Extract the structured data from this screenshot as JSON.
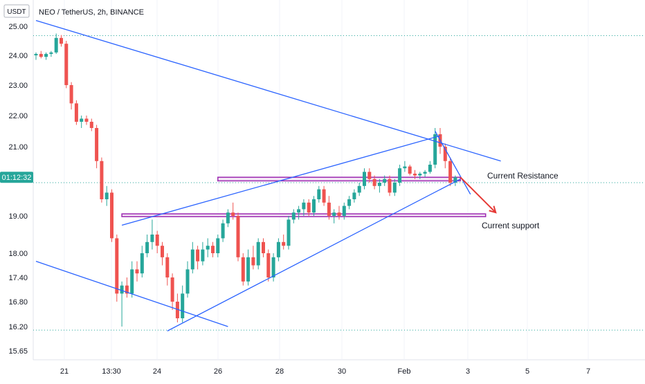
{
  "chart_data": {
    "type": "candlestick",
    "title": "NEO / TetherUS, 2h, BINANCE",
    "currency_badge": "USDT",
    "current_price_label": "01:12:32",
    "y_ticks": [
      "25.00",
      "24.00",
      "23.00",
      "22.00",
      "21.00",
      "19.00",
      "18.00",
      "17.40",
      "16.80",
      "16.20",
      "15.65"
    ],
    "x_ticks": [
      "21",
      "13:30",
      "24",
      "26",
      "28",
      "30",
      "Feb",
      "3",
      "5",
      "7"
    ],
    "annotations": {
      "resistance": "Current Resistance",
      "support": "Current support"
    },
    "colors": {
      "up": "#26a69a",
      "down": "#ef5350",
      "trendline": "#2962ff",
      "zone": "#9c27b0",
      "arrow": "#e53935",
      "dotted_level": "#26a69a",
      "current_badge": "#26a69a"
    },
    "series": [
      {
        "name": "NEO/USDT",
        "ohlc": [
          [
            24.0,
            24.1,
            23.85,
            24.05
          ],
          [
            24.05,
            24.15,
            23.9,
            23.95
          ],
          [
            23.95,
            24.1,
            23.85,
            24.05
          ],
          [
            24.05,
            24.15,
            23.95,
            24.1
          ],
          [
            24.1,
            24.75,
            24.05,
            24.6
          ],
          [
            24.6,
            24.7,
            24.3,
            24.4
          ],
          [
            24.4,
            24.5,
            22.9,
            23.0
          ],
          [
            23.0,
            23.1,
            22.2,
            22.4
          ],
          [
            22.4,
            22.5,
            21.7,
            21.8
          ],
          [
            21.8,
            22.0,
            21.6,
            21.9
          ],
          [
            21.9,
            22.0,
            21.7,
            21.8
          ],
          [
            21.8,
            21.9,
            21.5,
            21.6
          ],
          [
            21.6,
            21.7,
            20.4,
            20.6
          ],
          [
            20.6,
            20.7,
            19.4,
            19.5
          ],
          [
            19.5,
            19.9,
            19.3,
            19.7
          ],
          [
            19.7,
            19.8,
            18.3,
            18.4
          ],
          [
            18.4,
            18.5,
            16.8,
            17.0
          ],
          [
            17.0,
            17.3,
            16.2,
            17.2
          ],
          [
            17.2,
            17.4,
            16.9,
            17.0
          ],
          [
            17.0,
            17.8,
            16.9,
            17.6
          ],
          [
            17.6,
            17.8,
            17.3,
            17.5
          ],
          [
            17.5,
            18.2,
            17.4,
            18.0
          ],
          [
            18.0,
            18.5,
            17.9,
            18.3
          ],
          [
            18.3,
            18.9,
            18.1,
            18.5
          ],
          [
            18.5,
            18.6,
            18.0,
            18.2
          ],
          [
            18.2,
            18.3,
            17.7,
            17.9
          ],
          [
            17.9,
            18.0,
            17.2,
            17.4
          ],
          [
            17.4,
            17.5,
            16.6,
            16.8
          ],
          [
            16.8,
            17.0,
            16.3,
            16.4
          ],
          [
            16.4,
            17.2,
            16.3,
            17.0
          ],
          [
            17.0,
            17.8,
            16.9,
            17.6
          ],
          [
            17.6,
            18.3,
            17.5,
            18.1
          ],
          [
            18.1,
            18.2,
            17.6,
            17.8
          ],
          [
            17.8,
            18.3,
            17.7,
            18.1
          ],
          [
            18.1,
            18.4,
            17.9,
            18.2
          ],
          [
            18.2,
            18.3,
            17.9,
            18.0
          ],
          [
            18.0,
            18.5,
            17.9,
            18.4
          ],
          [
            18.4,
            18.9,
            18.3,
            18.8
          ],
          [
            18.8,
            19.2,
            18.7,
            19.1
          ],
          [
            19.1,
            19.4,
            18.9,
            19.0
          ],
          [
            19.0,
            19.1,
            17.8,
            17.9
          ],
          [
            17.9,
            18.0,
            17.2,
            17.3
          ],
          [
            17.3,
            18.1,
            17.2,
            17.9
          ],
          [
            17.9,
            18.2,
            17.6,
            17.7
          ],
          [
            17.7,
            18.4,
            17.6,
            18.3
          ],
          [
            18.3,
            18.4,
            17.9,
            18.0
          ],
          [
            18.0,
            18.1,
            17.3,
            17.4
          ],
          [
            17.4,
            18.0,
            17.3,
            17.9
          ],
          [
            17.9,
            18.4,
            17.8,
            18.3
          ],
          [
            18.3,
            18.5,
            18.1,
            18.2
          ],
          [
            18.2,
            19.0,
            18.1,
            18.9
          ],
          [
            18.9,
            19.2,
            18.8,
            19.1
          ],
          [
            19.1,
            19.3,
            18.9,
            19.2
          ],
          [
            19.2,
            19.5,
            19.0,
            19.4
          ],
          [
            19.4,
            19.5,
            19.0,
            19.1
          ],
          [
            19.1,
            19.6,
            19.0,
            19.5
          ],
          [
            19.5,
            19.9,
            19.4,
            19.8
          ],
          [
            19.8,
            19.9,
            19.3,
            19.4
          ],
          [
            19.4,
            19.6,
            18.9,
            19.0
          ],
          [
            19.0,
            19.2,
            18.8,
            19.1
          ],
          [
            19.1,
            19.3,
            18.9,
            19.0
          ],
          [
            19.0,
            19.4,
            18.9,
            19.3
          ],
          [
            19.3,
            19.6,
            19.2,
            19.5
          ],
          [
            19.5,
            19.8,
            19.4,
            19.7
          ],
          [
            19.7,
            20.0,
            19.6,
            19.9
          ],
          [
            19.9,
            20.4,
            19.8,
            20.3
          ],
          [
            20.3,
            20.4,
            20.0,
            20.1
          ],
          [
            20.1,
            20.2,
            19.8,
            19.9
          ],
          [
            19.9,
            20.1,
            19.7,
            20.0
          ],
          [
            20.0,
            20.2,
            19.9,
            20.1
          ],
          [
            20.1,
            20.2,
            19.6,
            19.7
          ],
          [
            19.7,
            20.1,
            19.6,
            20.0
          ],
          [
            20.0,
            20.5,
            19.9,
            20.4
          ],
          [
            20.4,
            20.6,
            20.3,
            20.45
          ],
          [
            20.45,
            20.5,
            20.2,
            20.25
          ],
          [
            20.25,
            20.35,
            20.1,
            20.2
          ],
          [
            20.2,
            20.3,
            20.1,
            20.25
          ],
          [
            20.25,
            20.35,
            20.15,
            20.3
          ],
          [
            20.3,
            20.6,
            20.25,
            20.5
          ],
          [
            20.5,
            21.6,
            20.4,
            21.4
          ],
          [
            21.4,
            21.6,
            20.8,
            21.0
          ],
          [
            21.0,
            21.1,
            20.4,
            20.6
          ],
          [
            20.6,
            20.7,
            19.9,
            20.0
          ],
          [
            20.0,
            20.2,
            19.9,
            20.15
          ]
        ]
      }
    ],
    "lines": [
      {
        "kind": "trend",
        "from": [
          0,
          25.2
        ],
        "to": [
          92,
          20.6
        ]
      },
      {
        "kind": "trend",
        "from": [
          0,
          17.8
        ],
        "to": [
          38,
          16.2
        ]
      },
      {
        "kind": "trend",
        "from": [
          17,
          18.75
        ],
        "to": [
          80,
          21.35
        ]
      },
      {
        "kind": "trend",
        "from": [
          26,
          16.1
        ],
        "to": [
          84,
          20.1
        ]
      },
      {
        "kind": "trend",
        "from": [
          79,
          21.5
        ],
        "to": [
          86,
          19.65
        ]
      }
    ],
    "zones": [
      {
        "name": "resistance",
        "from_bar": 36,
        "to_bar": 84,
        "low": 20.05,
        "high": 20.15
      },
      {
        "name": "support",
        "from_bar": 17,
        "to_bar": 89,
        "low": 18.98,
        "high": 19.06
      }
    ],
    "horizontal_levels": [
      24.68,
      16.12,
      20.0
    ]
  }
}
